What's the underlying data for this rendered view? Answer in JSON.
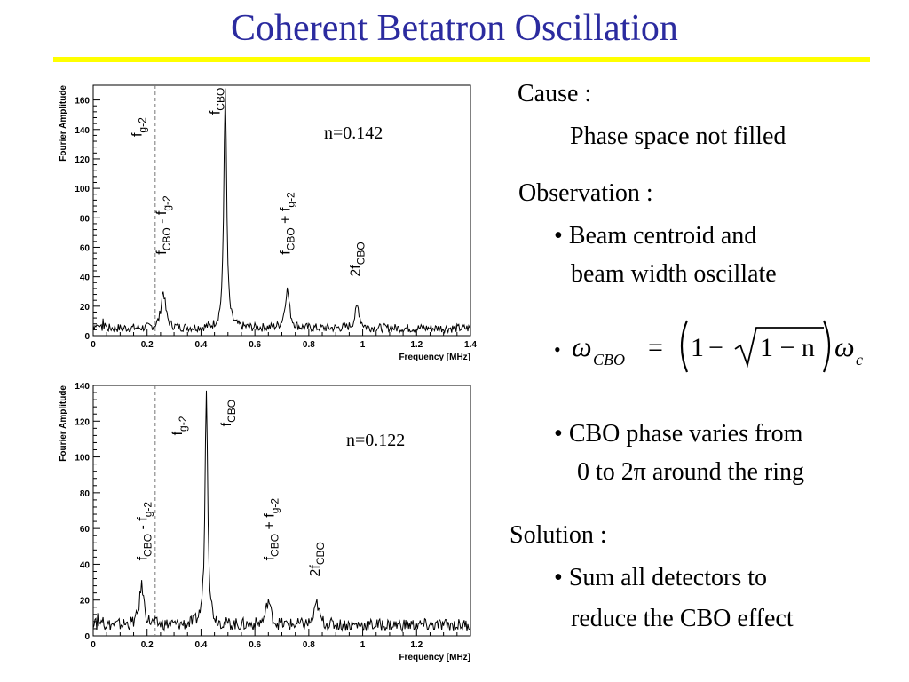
{
  "slide": {
    "title": "Coherent Betatron Oscillation",
    "cause_heading": "Cause :",
    "cause_text": "Phase space not filled",
    "observation_heading": "Observation :",
    "obs_bullet1_line1": "Beam centroid and",
    "obs_bullet1_line2": "beam width oscillate",
    "formula": {
      "omega": "ω",
      "omega_sub": "CBO",
      "equals": "=",
      "one": "1",
      "minus": "−",
      "sqrt_arg": "1 − n",
      "omega_c_sub": "c"
    },
    "obs_bullet3_line1": "CBO phase varies from",
    "obs_bullet3_line2": "0 to 2π around the ring",
    "solution_heading": "Solution :",
    "sol_bullet_line1": "Sum all detectors to",
    "sol_bullet_line2": "reduce the CBO effect"
  },
  "colors": {
    "title": "#2b2b9f",
    "rule": "#ffff00",
    "trace": "#000000"
  },
  "chart_data": [
    {
      "type": "line",
      "annotation": "n=0.142",
      "xlabel": "Frequency [MHz]",
      "ylabel": "Fourier Amplitude",
      "xlim": [
        0,
        1.4
      ],
      "ylim": [
        0,
        170
      ],
      "xticks": [
        "0",
        "0.2",
        "0.4",
        "0.6",
        "0.8",
        "1",
        "1.2",
        "1.4"
      ],
      "xtick_values": [
        0,
        0.2,
        0.4,
        0.6,
        0.8,
        1,
        1.2,
        1.4
      ],
      "yticks": [
        "0",
        "20",
        "40",
        "60",
        "80",
        "100",
        "120",
        "140",
        "160"
      ],
      "ytick_values": [
        0,
        20,
        40,
        60,
        80,
        100,
        120,
        140,
        160
      ],
      "g2_line_x": 0.23,
      "baseline": 5,
      "peaks": [
        {
          "label": "f_CBO - f_g-2",
          "x": 0.26,
          "amp": 25
        },
        {
          "label": "f_CBO",
          "x": 0.49,
          "amp": 165
        },
        {
          "label": "f_CBO + f_g-2",
          "x": 0.72,
          "amp": 26
        },
        {
          "label": "2f_CBO",
          "x": 0.98,
          "amp": 15
        }
      ],
      "peak_labels": [
        {
          "main": "f",
          "sub": "g-2",
          "x": 0.18,
          "y": 135
        },
        {
          "main": "f",
          "sub": "CBO",
          "x": 0.47,
          "y": 150
        },
        {
          "main": "f",
          "sub": "CBO",
          "mid": " - f",
          "sub2": "g-2",
          "x": 0.27,
          "y": 55
        },
        {
          "main": "f",
          "sub": "CBO",
          "mid": " + f",
          "sub2": "g-2",
          "x": 0.73,
          "y": 55
        },
        {
          "main": "2f",
          "sub": "CBO",
          "x": 0.99,
          "y": 40
        }
      ]
    },
    {
      "type": "line",
      "annotation": "n=0.122",
      "xlabel": "Frequency [MHz]",
      "ylabel": "Fourier Amplitude",
      "xlim": [
        0,
        1.4
      ],
      "ylim": [
        0,
        140
      ],
      "xticks": [
        "0",
        "0.2",
        "0.4",
        "0.6",
        "0.8",
        "1",
        "1.2"
      ],
      "xtick_values": [
        0,
        0.2,
        0.4,
        0.6,
        0.8,
        1,
        1.2
      ],
      "yticks": [
        "0",
        "20",
        "40",
        "60",
        "80",
        "100",
        "120",
        "140"
      ],
      "ytick_values": [
        0,
        20,
        40,
        60,
        80,
        100,
        120,
        140
      ],
      "g2_line_x": 0.23,
      "baseline": 6,
      "peaks": [
        {
          "label": "f_CBO - f_g-2",
          "x": 0.18,
          "amp": 22
        },
        {
          "label": "f_CBO",
          "x": 0.42,
          "amp": 134
        },
        {
          "label": "f_CBO + f_g-2",
          "x": 0.65,
          "amp": 14
        },
        {
          "label": "2f_CBO",
          "x": 0.83,
          "amp": 12
        }
      ],
      "peak_labels": [
        {
          "main": "f",
          "sub": "g-2",
          "x": 0.33,
          "y": 112
        },
        {
          "main": "f",
          "sub": "CBO",
          "x": 0.51,
          "y": 117
        },
        {
          "main": "f",
          "sub": "CBO",
          "mid": " - f",
          "sub2": "g-2",
          "x": 0.2,
          "y": 42
        },
        {
          "main": "f",
          "sub": "CBO",
          "mid": " + f",
          "sub2": "g-2",
          "x": 0.67,
          "y": 42
        },
        {
          "main": "2f",
          "sub": "CBO",
          "x": 0.84,
          "y": 33
        }
      ]
    }
  ]
}
